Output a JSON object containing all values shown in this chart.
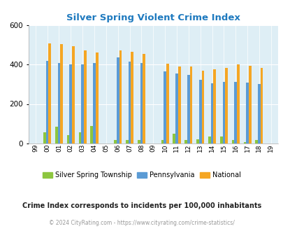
{
  "title": "Silver Spring Violent Crime Index",
  "years": [
    1999,
    2000,
    2001,
    2002,
    2003,
    2004,
    2005,
    2006,
    2007,
    2008,
    2009,
    2010,
    2011,
    2012,
    2013,
    2014,
    2015,
    2016,
    2017,
    2018,
    2019
  ],
  "silver_spring": [
    0,
    55,
    85,
    40,
    57,
    88,
    0,
    15,
    15,
    18,
    0,
    15,
    47,
    15,
    20,
    33,
    33,
    18,
    5,
    17,
    0
  ],
  "pennsylvania": [
    0,
    420,
    408,
    400,
    400,
    410,
    0,
    438,
    415,
    408,
    0,
    367,
    355,
    348,
    322,
    305,
    313,
    313,
    310,
    302,
    0
  ],
  "national": [
    0,
    507,
    505,
    494,
    471,
    463,
    0,
    473,
    467,
    455,
    0,
    404,
    389,
    389,
    368,
    376,
    383,
    400,
    395,
    383,
    0
  ],
  "bg_color": "#deeef5",
  "green_color": "#8dc63f",
  "blue_color": "#5b9bd5",
  "orange_color": "#f5a623",
  "title_color": "#1f7abf",
  "legend_label1": "Silver Spring Township",
  "legend_label2": "Pennsylvania",
  "legend_label3": "National",
  "subtitle": "Crime Index corresponds to incidents per 100,000 inhabitants",
  "footer": "© 2024 CityRating.com - https://www.cityrating.com/crime-statistics/",
  "ylim": [
    0,
    600
  ],
  "yticks": [
    0,
    200,
    400,
    600
  ]
}
